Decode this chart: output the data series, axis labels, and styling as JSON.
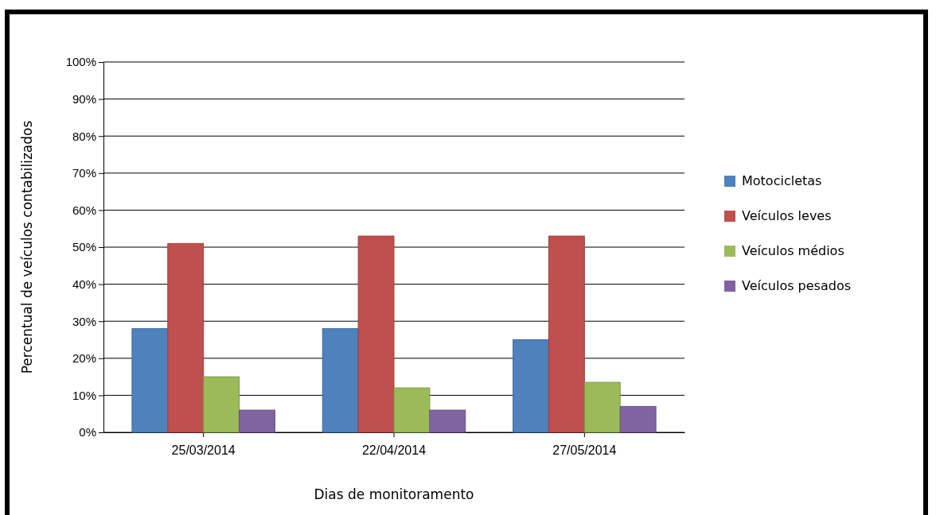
{
  "chart_data": {
    "type": "bar",
    "xlabel": "Dias de monitoramento",
    "ylabel": "Percentual de veículos contabilizados",
    "categories": [
      "25/03/2014",
      "22/04/2014",
      "27/05/2014"
    ],
    "series": [
      {
        "name": "Motocicletas",
        "color": "#4f81bd",
        "values": [
          28,
          28,
          25
        ]
      },
      {
        "name": "Veículos leves",
        "color": "#c0504d",
        "values": [
          51,
          53,
          53
        ]
      },
      {
        "name": "Veículos médios",
        "color": "#9bbb59",
        "values": [
          15,
          12,
          13.5
        ]
      },
      {
        "name": "Veículos pesados",
        "color": "#8064a2",
        "values": [
          6,
          6,
          7
        ]
      }
    ],
    "ylim": [
      0,
      100
    ],
    "yticks": [
      {
        "value": 0,
        "label": "0%"
      },
      {
        "value": 10,
        "label": "10%"
      },
      {
        "value": 20,
        "label": "20%"
      },
      {
        "value": 30,
        "label": "30%"
      },
      {
        "value": 40,
        "label": "40%"
      },
      {
        "value": 50,
        "label": "50%"
      },
      {
        "value": 60,
        "label": "60%"
      },
      {
        "value": 70,
        "label": "70%"
      },
      {
        "value": 80,
        "label": "80%"
      },
      {
        "value": 90,
        "label": "90%"
      },
      {
        "value": 100,
        "label": "100%"
      }
    ],
    "grid": "y",
    "legend": "right"
  }
}
